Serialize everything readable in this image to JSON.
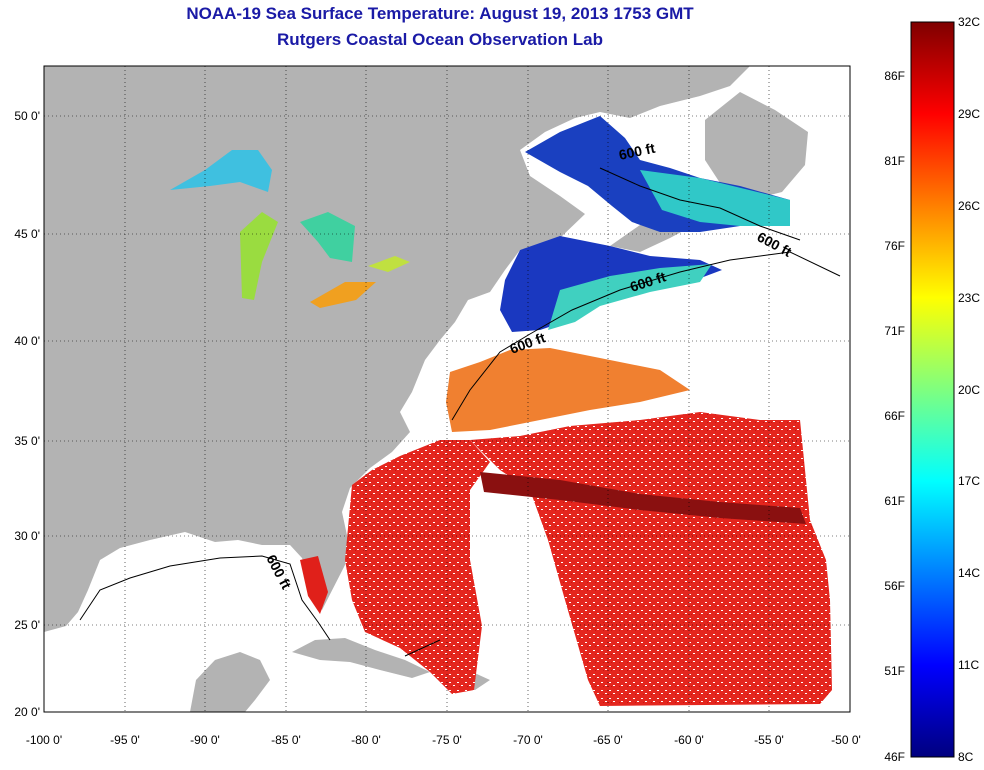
{
  "title_line1": "NOAA-19 Sea Surface Temperature:  August 19, 2013 1753 GMT",
  "title_line2": "Rutgers Coastal Ocean Observation Lab",
  "x_ticks": [
    "-100 0'",
    "-95 0'",
    "-90 0'",
    "-85 0'",
    "-80 0'",
    "-75 0'",
    "-70 0'",
    "-65 0'",
    "-60 0'",
    "-55 0'",
    "-50 0'"
  ],
  "y_ticks": [
    "50 0'",
    "45 0'",
    "40 0'",
    "35 0'",
    "30 0'",
    "25 0'",
    "20 0'"
  ],
  "colorbar": {
    "celsius": [
      "32C",
      "29C",
      "26C",
      "23C",
      "20C",
      "17C",
      "14C",
      "11C",
      "8C"
    ],
    "fahrenheit": [
      "86F",
      "81F",
      "76F",
      "71F",
      "66F",
      "61F",
      "56F",
      "51F",
      "46F"
    ]
  },
  "contour_labels": [
    "600 ft",
    "600 ft",
    "600 ft",
    "600 ft",
    "600 ft"
  ],
  "colors": {
    "land": "#b3b3b3",
    "title": "#1a1aa6",
    "warm": "#e0201a",
    "hot": "#8a1010",
    "cold": "#1030b0",
    "mild": "#40d0d0"
  }
}
